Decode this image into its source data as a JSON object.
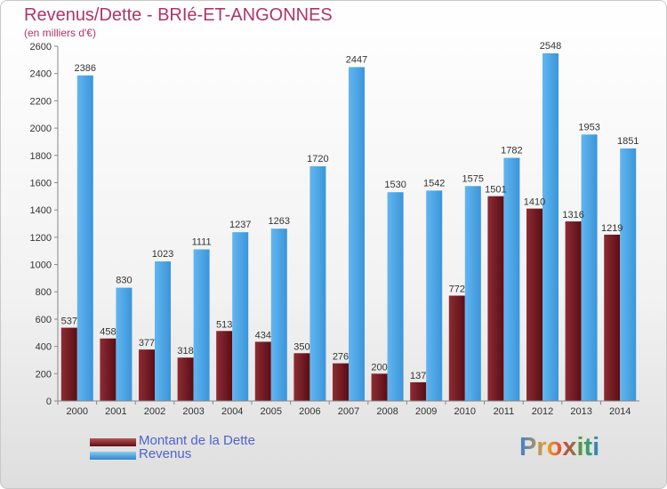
{
  "title": "Revenus/Dette - BRIé-ET-ANGONNES",
  "subtitle": "(en milliers d'€)",
  "logo": "Proxiti",
  "colors": {
    "dette": "#7a1a22",
    "revenus": "#4aa3e4",
    "title": "#b0336a",
    "legend_text": "#4f63c9"
  },
  "legend": [
    "Montant de la Dette",
    "Revenus"
  ],
  "chart_data": {
    "type": "bar",
    "categories": [
      "2000",
      "2001",
      "2002",
      "2003",
      "2004",
      "2005",
      "2006",
      "2007",
      "2008",
      "2009",
      "2010",
      "2011",
      "2012",
      "2013",
      "2014"
    ],
    "series": [
      {
        "name": "Montant de la Dette",
        "values": [
          537,
          458,
          377,
          318,
          513,
          434,
          350,
          276,
          200,
          137,
          772,
          1501,
          1410,
          1316,
          1219
        ]
      },
      {
        "name": "Revenus",
        "values": [
          2386,
          830,
          1023,
          1111,
          1237,
          1263,
          1720,
          2447,
          1530,
          1542,
          1575,
          1782,
          2548,
          1953,
          1851
        ]
      }
    ],
    "data_labels": {
      "dette": [
        "537",
        "458",
        "377",
        "318",
        "513",
        "434",
        "350",
        "276",
        "200",
        "137",
        "772",
        "1501",
        "1410",
        "1316",
        "1219"
      ],
      "revenus": [
        "2386",
        "830",
        "1023",
        "1111",
        "1237",
        "1263",
        "1720",
        "2447",
        "1530",
        "1542",
        "1575",
        "1782",
        "2548",
        "1953",
        "1851"
      ]
    },
    "ylim": [
      0,
      2600
    ],
    "yticks": [
      0,
      200,
      400,
      600,
      800,
      1000,
      1200,
      1400,
      1600,
      1800,
      2000,
      2200,
      2400,
      2600
    ],
    "grid": false,
    "legend_position": "bottom-left"
  }
}
